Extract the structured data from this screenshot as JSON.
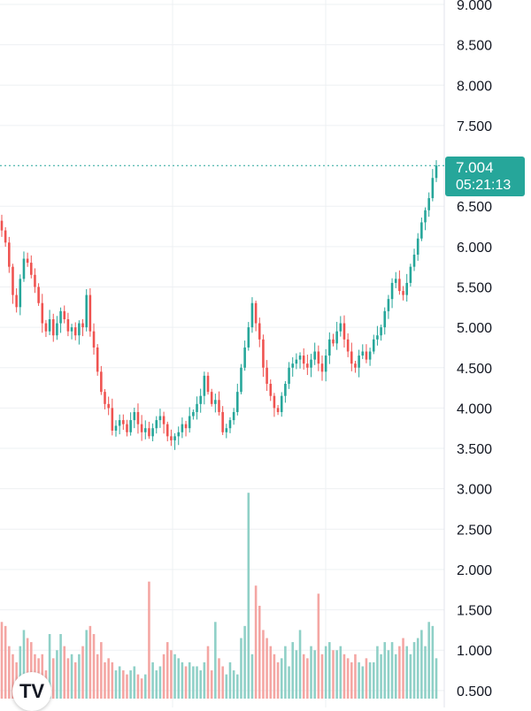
{
  "colors": {
    "up": "#26a69a",
    "down": "#ef5350",
    "up_volume": "#8fd0c7",
    "down_volume": "#f4a6a3",
    "grid": "#eef0f3",
    "price_line": "#26a69a"
  },
  "logo": {
    "text": "TV",
    "icon": "tradingview-logo-icon"
  },
  "price_label": {
    "value": "7.004",
    "countdown": "05:21:13"
  },
  "chart_data": {
    "type": "candlestick",
    "price_axis": {
      "ticks": [
        "9.000",
        "8.500",
        "8.000",
        "7.500",
        "6.500",
        "6.000",
        "5.500",
        "5.000",
        "4.500",
        "4.000",
        "3.500",
        "3.000",
        "2.500",
        "2.000",
        "1.500",
        "1.000",
        "0.500"
      ],
      "ylim": [
        0.25,
        9.15
      ]
    },
    "last_price": 7.004,
    "candles_close": [
      6.2,
      6.05,
      5.75,
      5.4,
      5.25,
      5.6,
      5.85,
      5.8,
      5.65,
      5.5,
      5.3,
      5.05,
      4.95,
      5.1,
      4.9,
      5.05,
      5.2,
      5.1,
      4.95,
      5.0,
      4.9,
      5.05,
      5.0,
      5.4,
      4.95,
      4.75,
      4.45,
      4.2,
      4.05,
      4.0,
      3.72,
      3.78,
      3.85,
      3.8,
      3.7,
      3.85,
      3.95,
      3.8,
      3.7,
      3.75,
      3.65,
      3.75,
      3.85,
      3.9,
      3.8,
      3.65,
      3.6,
      3.65,
      3.7,
      3.8,
      3.75,
      3.9,
      3.95,
      4.05,
      4.15,
      4.4,
      4.2,
      4.05,
      4.1,
      3.95,
      3.7,
      3.75,
      3.85,
      3.95,
      4.2,
      4.5,
      4.75,
      5.0,
      5.3,
      5.05,
      4.85,
      4.5,
      4.3,
      4.15,
      4.0,
      3.95,
      4.15,
      4.3,
      4.5,
      4.55,
      4.6,
      4.65,
      4.55,
      4.5,
      4.6,
      4.7,
      4.55,
      4.45,
      4.65,
      4.85,
      4.8,
      4.95,
      5.05,
      4.85,
      4.7,
      4.55,
      4.5,
      4.65,
      4.7,
      4.6,
      4.7,
      4.85,
      4.9,
      5.0,
      5.2,
      5.35,
      5.55,
      5.6,
      5.45,
      5.4,
      5.55,
      5.75,
      5.9,
      6.1,
      6.3,
      6.45,
      6.6,
      6.85,
      7.004
    ],
    "volume_note": "volume bars share the price scale, one per candle",
    "volume": [
      1.35,
      1.3,
      1.05,
      0.95,
      0.85,
      1.05,
      1.25,
      1.15,
      1.1,
      0.95,
      0.9,
      0.95,
      0.75,
      1.2,
      0.9,
      1.0,
      1.2,
      1.05,
      0.9,
      0.95,
      0.85,
      0.95,
      1.05,
      1.25,
      1.3,
      1.2,
      0.95,
      1.1,
      0.85,
      0.9,
      0.85,
      0.75,
      0.8,
      0.75,
      0.7,
      0.75,
      0.8,
      0.7,
      0.65,
      0.7,
      1.85,
      0.85,
      0.75,
      0.8,
      0.95,
      1.1,
      1.0,
      0.95,
      0.9,
      0.85,
      0.8,
      0.85,
      0.8,
      0.8,
      0.75,
      0.85,
      1.05,
      0.75,
      1.35,
      0.9,
      0.8,
      0.7,
      0.85,
      0.75,
      0.7,
      1.15,
      1.3,
      2.95,
      0.95,
      1.8,
      1.55,
      1.25,
      1.15,
      1.05,
      0.95,
      0.85,
      0.9,
      1.05,
      0.8,
      1.1,
      1.0,
      1.25,
      0.95,
      0.9,
      1.05,
      1.0,
      1.7,
      0.95,
      1.05,
      1.1,
      1.0,
      1.0,
      1.05,
      0.95,
      0.9,
      0.85,
      0.95,
      0.85,
      0.8,
      0.9,
      0.85,
      0.85,
      1.05,
      0.95,
      1.1,
      1.0,
      1.1,
      0.95,
      1.05,
      1.15,
      1.05,
      0.95,
      1.1,
      1.15,
      1.25,
      1.05,
      1.35,
      1.3,
      0.9
    ]
  }
}
